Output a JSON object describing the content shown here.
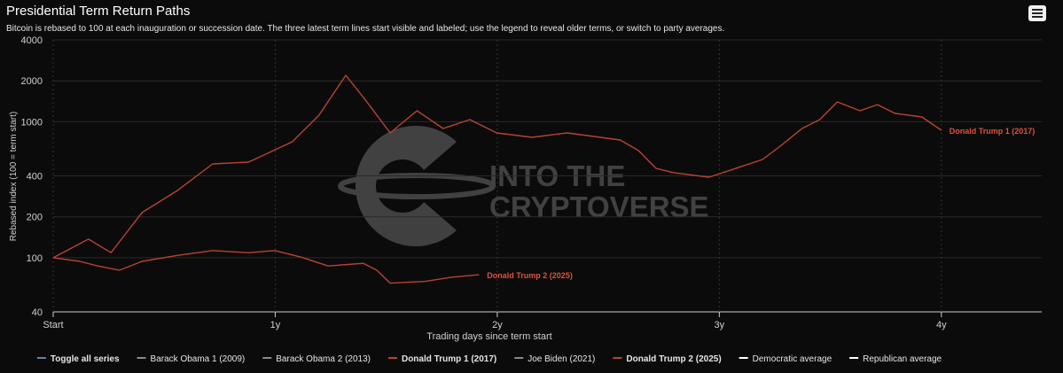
{
  "chart_data": {
    "type": "line",
    "title": "Presidential Term Return Paths",
    "subtitle": "Bitcoin is rebased to 100 at each inauguration or succession date. The three latest term lines start visible and labeled; use the legend to reveal older terms, or switch to party averages.",
    "x_label": "Trading days since term start",
    "y_label": "Rebased index (100 = term start)",
    "watermark": [
      "INTO THE",
      "CRYPTOVERSE"
    ],
    "log_scale_y": true,
    "grid": true,
    "xlim": [
      0,
      1625
    ],
    "ylim": [
      40,
      4000
    ],
    "xticks": [
      {
        "value": 0,
        "label": "Start"
      },
      {
        "value": 365,
        "label": "1y"
      },
      {
        "value": 730,
        "label": "2y"
      },
      {
        "value": 1095,
        "label": "3y"
      },
      {
        "value": 1460,
        "label": "4y"
      }
    ],
    "yticks": [
      40,
      100,
      200,
      400,
      1000,
      2000,
      4000
    ],
    "series": [
      {
        "name": "Donald Trump 1 (2017)",
        "color": "#b84330",
        "x": [
          0,
          58,
          95,
          146,
          204,
          262,
          321,
          393,
          437,
          481,
          510,
          554,
          598,
          641,
          685,
          729,
          787,
          845,
          932,
          962,
          991,
          1020,
          1078,
          1122,
          1166,
          1195,
          1231,
          1260,
          1289,
          1326,
          1355,
          1384,
          1428,
          1460
        ],
        "values": [
          100,
          137,
          109,
          215,
          312,
          490,
          505,
          713,
          1117,
          2194,
          1510,
          828,
          1205,
          892,
          1037,
          828,
          768,
          828,
          734,
          614,
          454,
          422,
          391,
          454,
          528,
          661,
          892,
          1037,
          1400,
          1205,
          1337,
          1151,
          1084,
          866
        ]
      },
      {
        "name": "Donald Trump 2 (2025)",
        "color": "#b84330",
        "x": [
          0,
          44,
          73,
          109,
          146,
          204,
          262,
          321,
          364,
          408,
          452,
          510,
          532,
          554,
          612,
          656,
          700
        ],
        "values": [
          100,
          94,
          87,
          81,
          94,
          104,
          113,
          109,
          113,
          101,
          87,
          91,
          81,
          65,
          67,
          72,
          75
        ]
      }
    ],
    "legend": [
      {
        "name": "Toggle all series",
        "color": "#6f7fa6",
        "bold": true
      },
      {
        "name": "Barack Obama 1 (2009)",
        "color": "#8a8a8a",
        "bold": false
      },
      {
        "name": "Barack Obama 2 (2013)",
        "color": "#8a8a8a",
        "bold": false
      },
      {
        "name": "Donald Trump 1 (2017)",
        "color": "#b84330",
        "bold": true
      },
      {
        "name": "Joe Biden (2021)",
        "color": "#8a8a8a",
        "bold": false
      },
      {
        "name": "Donald Trump 2 (2025)",
        "color": "#b84330",
        "bold": true
      },
      {
        "name": "Democratic average",
        "color": "#ffffff",
        "bold": false
      },
      {
        "name": "Republican average",
        "color": "#ffffff",
        "bold": false
      }
    ]
  }
}
